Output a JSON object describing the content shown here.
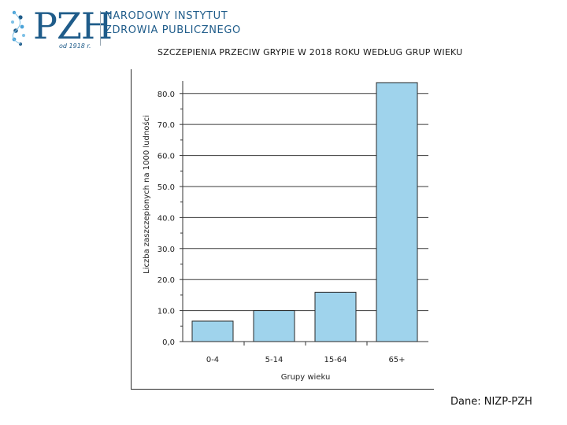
{
  "header": {
    "logo_text": "PZH",
    "institute_line1": "NARODOWY INSTYTUT",
    "institute_line2": "ZDROWIA PUBLICZNEGO",
    "since": "od 1918 r.",
    "brand_color": "#1f5c8a"
  },
  "footer": {
    "source": "Dane: NIZP-PZH"
  },
  "chart_data": {
    "type": "bar",
    "title": "SZCZEPIENIA PRZECIW GRYPIE W 2018 ROKU WEDŁUG GRUP WIEKU",
    "xlabel": "Grupy wieku",
    "ylabel": "Liczba zaszczepionych na 1000 ludności",
    "categories": [
      "0-4",
      "5-14",
      "15-64",
      "65+"
    ],
    "values": [
      6.6,
      10.0,
      15.9,
      83.5
    ],
    "ylim": [
      0,
      84
    ],
    "yticks": [
      0,
      10,
      20,
      30,
      40,
      50,
      60,
      70,
      80
    ],
    "ytick_labels": [
      "0,0",
      "10.0",
      "20.0",
      "30.0",
      "40.0",
      "50.0",
      "60.0",
      "70.0",
      "80.0"
    ],
    "bar_color": "#9fd3ec",
    "grid": true,
    "legend": "none"
  }
}
